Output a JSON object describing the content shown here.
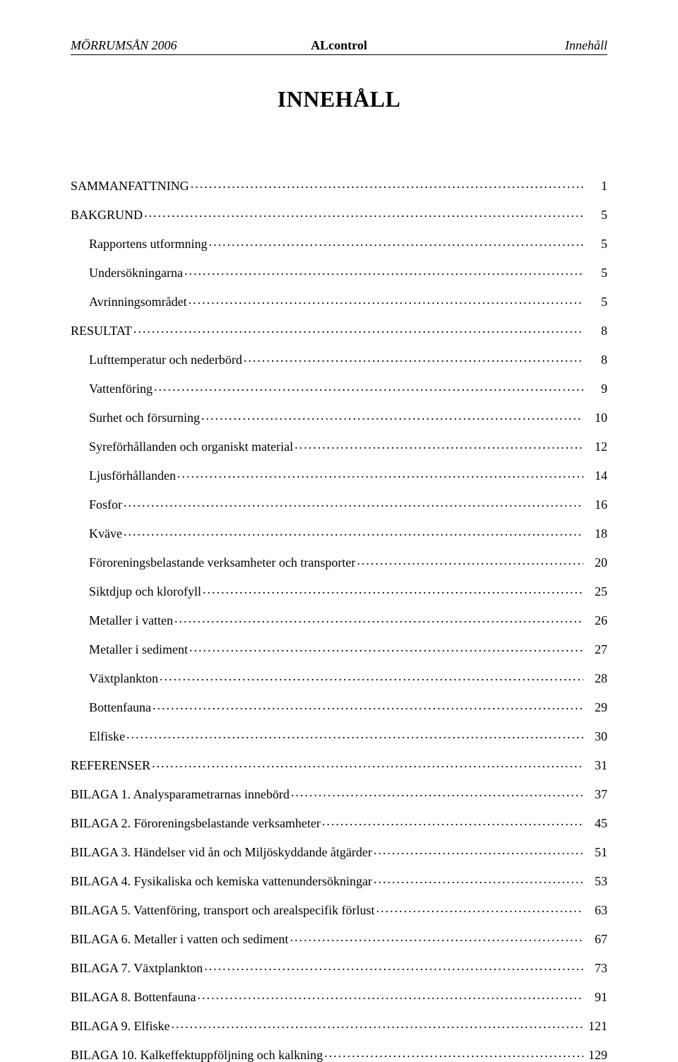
{
  "header": {
    "left": "MÖRRUMSÅN 2006",
    "center": "ALcontrol",
    "right": "Innehåll"
  },
  "title": "INNEHÅLL",
  "toc": [
    {
      "label": "SAMMANFATTNING",
      "page": "1",
      "indent": false
    },
    {
      "label": "BAKGRUND",
      "page": "5",
      "indent": false
    },
    {
      "label": "Rapportens utformning",
      "page": "5",
      "indent": true
    },
    {
      "label": "Undersökningarna",
      "page": "5",
      "indent": true
    },
    {
      "label": "Avrinningsområdet",
      "page": "5",
      "indent": true
    },
    {
      "label": "RESULTAT",
      "page": "8",
      "indent": false
    },
    {
      "label": "Lufttemperatur och nederbörd",
      "page": "8",
      "indent": true
    },
    {
      "label": "Vattenföring",
      "page": "9",
      "indent": true
    },
    {
      "label": "Surhet och försurning",
      "page": "10",
      "indent": true
    },
    {
      "label": "Syreförhållanden och organiskt material",
      "page": "12",
      "indent": true
    },
    {
      "label": "Ljusförhållanden",
      "page": "14",
      "indent": true
    },
    {
      "label": "Fosfor",
      "page": "16",
      "indent": true
    },
    {
      "label": "Kväve",
      "page": "18",
      "indent": true
    },
    {
      "label": "Föroreningsbelastande verksamheter och transporter",
      "page": "20",
      "indent": true
    },
    {
      "label": "Siktdjup och klorofyll",
      "page": "25",
      "indent": true
    },
    {
      "label": "Metaller i vatten",
      "page": "26",
      "indent": true
    },
    {
      "label": "Metaller i sediment",
      "page": "27",
      "indent": true
    },
    {
      "label": "Växtplankton",
      "page": "28",
      "indent": true
    },
    {
      "label": "Bottenfauna",
      "page": "29",
      "indent": true
    },
    {
      "label": "Elfiske",
      "page": "30",
      "indent": true
    },
    {
      "label": "REFERENSER",
      "page": "31",
      "indent": false
    },
    {
      "label": "BILAGA 1. Analysparametrarnas innebörd",
      "page": "37",
      "indent": false
    },
    {
      "label": "BILAGA 2. Föroreningsbelastande verksamheter",
      "page": "45",
      "indent": false
    },
    {
      "label": "BILAGA 3. Händelser vid ån och Miljöskyddande åtgärder",
      "page": "51",
      "indent": false
    },
    {
      "label": "BILAGA 4. Fysikaliska och kemiska vattenundersökningar",
      "page": "53",
      "indent": false
    },
    {
      "label": "BILAGA 5. Vattenföring, transport och arealspecifik förlust",
      "page": "63",
      "indent": false
    },
    {
      "label": "BILAGA 6. Metaller i vatten och sediment",
      "page": "67",
      "indent": false
    },
    {
      "label": "BILAGA 7. Växtplankton",
      "page": "73",
      "indent": false
    },
    {
      "label": "BILAGA 8. Bottenfauna",
      "page": "91",
      "indent": false
    },
    {
      "label": "BILAGA 9. Elfiske",
      "page": "121",
      "indent": false
    },
    {
      "label": "BILAGA 10. Kalkeffektuppföljning och kalkning",
      "page": "129",
      "indent": false
    }
  ]
}
